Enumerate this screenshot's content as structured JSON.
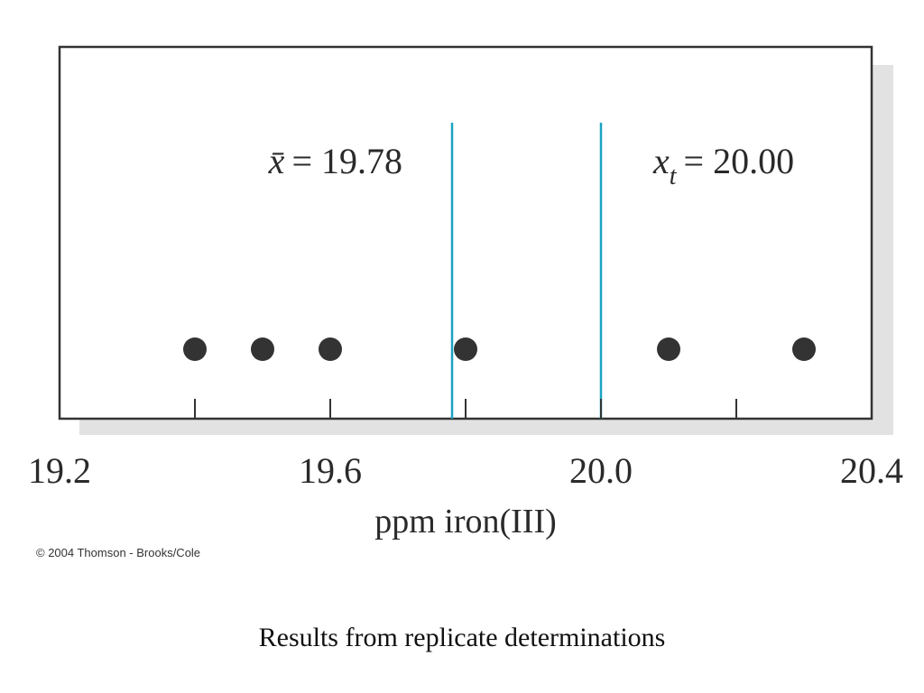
{
  "chart_data": {
    "type": "scatter",
    "xlabel": "ppm iron(III)",
    "xlim": [
      19.2,
      20.4
    ],
    "x_ticks": [
      19.4,
      19.6,
      19.8,
      20.0,
      20.2
    ],
    "x_tick_labels": [
      {
        "value": 19.2,
        "label": "19.2"
      },
      {
        "value": 19.6,
        "label": "19.6"
      },
      {
        "value": 20.0,
        "label": "20.0"
      },
      {
        "value": 20.4,
        "label": "20.4"
      }
    ],
    "points": [
      19.4,
      19.5,
      19.6,
      19.8,
      20.1,
      20.3
    ],
    "reference_lines": [
      {
        "value": 19.78,
        "symbol": "x̄",
        "label_text": "= 19.78",
        "color": "#1aa3c4"
      },
      {
        "value": 20.0,
        "symbol": "x",
        "subscript": "t",
        "label_text": "= 20.00",
        "color": "#1aa3c4"
      }
    ],
    "grid": false,
    "marker_color": "#333333"
  },
  "copyright": "© 2004 Thomson - Brooks/Cole",
  "caption": "Results from replicate determinations"
}
